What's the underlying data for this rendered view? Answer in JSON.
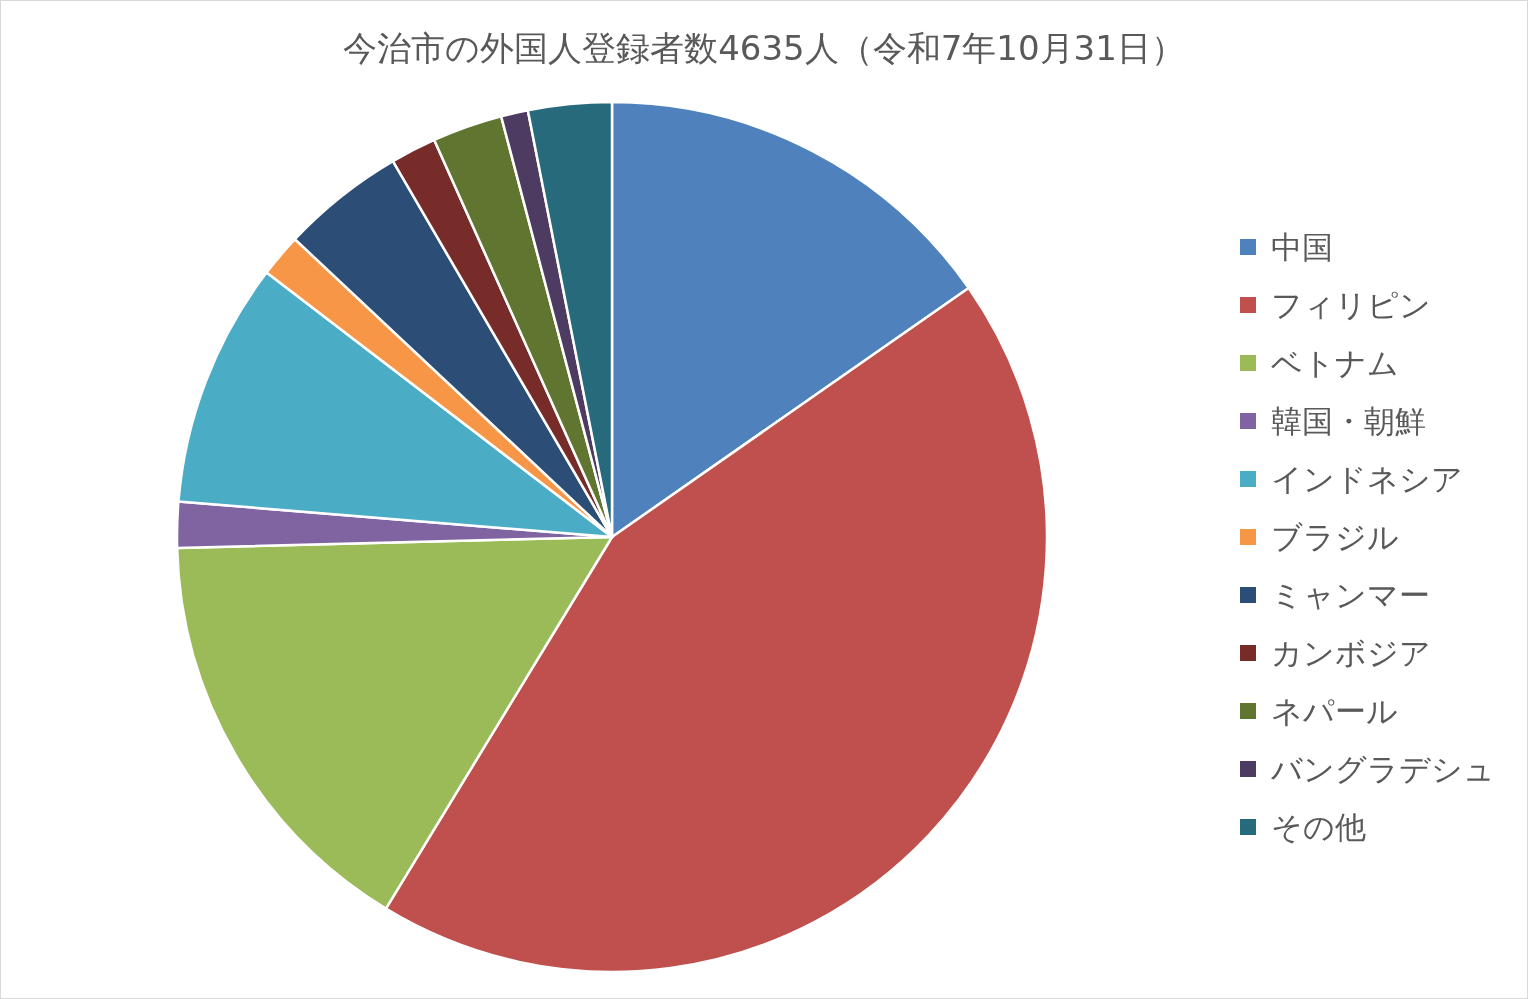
{
  "chart_data": {
    "type": "pie",
    "title": "今治市の外国人登録者数4635人（令和7年10月31日）",
    "categories": [
      "中国",
      "フィリピン",
      "ベトナム",
      "韓国・朝鮮",
      "インドネシア",
      "ブラジル",
      "ミャンマー",
      "カンボジア",
      "ネパール",
      "バングラデシュ",
      "その他"
    ],
    "values": [
      15.3,
      43.4,
      15.9,
      1.7,
      9.1,
      1.6,
      4.6,
      1.7,
      2.6,
      1.0,
      3.1
    ],
    "colors": [
      "#4f81bd",
      "#c0504d",
      "#9bbb59",
      "#8064a2",
      "#4bacc6",
      "#f79646",
      "#2c4d75",
      "#772c2a",
      "#5f7530",
      "#4d3b62",
      "#276a7c"
    ],
    "legend": "right"
  }
}
